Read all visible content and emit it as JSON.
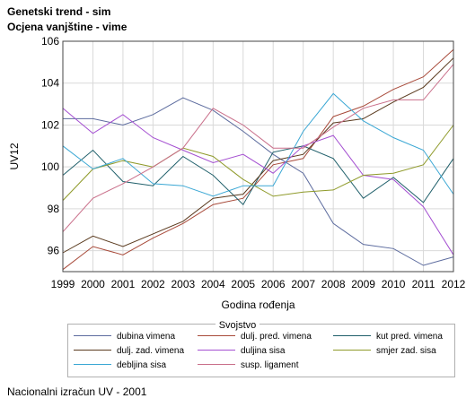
{
  "header": {
    "title": "Genetski trend - sim",
    "subtitle": "Ocjena vanjštine - vime"
  },
  "footer": {
    "text": "Nacionalni izračun UV - 2001"
  },
  "chart_data": {
    "type": "line",
    "xlabel": "Godina rođenja",
    "ylabel": "UV12",
    "x": [
      "1999",
      "2000",
      "2001",
      "2002",
      "2003",
      "2004",
      "2005",
      "2006",
      "2007",
      "2008",
      "2009",
      "2010",
      "2011",
      "2012"
    ],
    "ylim": [
      95,
      106
    ],
    "yticks": [
      "96",
      "98",
      "100",
      "102",
      "104",
      "106"
    ],
    "grid": true,
    "legend": {
      "title": "Svojstvo",
      "placement": "bottom"
    },
    "series": [
      {
        "name": "dubina vimena",
        "color": "#5c6b9e",
        "values": [
          102.3,
          102.3,
          102.0,
          102.5,
          103.3,
          102.7,
          101.7,
          100.6,
          99.7,
          97.3,
          96.3,
          96.1,
          95.3,
          95.7
        ]
      },
      {
        "name": "dulj. pred. vimena",
        "color": "#a84a3a",
        "values": [
          95.1,
          96.2,
          95.8,
          96.6,
          97.3,
          98.2,
          98.5,
          100.1,
          100.4,
          102.4,
          102.9,
          103.7,
          104.3,
          105.6
        ]
      },
      {
        "name": "kut pred. vimena",
        "color": "#1f5f6a",
        "values": [
          99.6,
          100.8,
          99.3,
          99.1,
          100.5,
          99.6,
          98.2,
          100.7,
          101.0,
          100.4,
          98.5,
          99.5,
          98.3,
          100.4
        ]
      },
      {
        "name": "dulj. zad. vimena",
        "color": "#5a3a1e",
        "values": [
          95.9,
          96.7,
          96.2,
          96.8,
          97.4,
          98.5,
          98.7,
          100.3,
          100.6,
          102.1,
          102.3,
          103.1,
          103.8,
          105.2
        ]
      },
      {
        "name": "duljina sisa",
        "color": "#a44fd1",
        "values": [
          102.8,
          101.6,
          102.5,
          101.4,
          100.8,
          100.2,
          100.6,
          99.7,
          101.0,
          101.5,
          99.6,
          99.4,
          98.1,
          95.8
        ]
      },
      {
        "name": "smjer zad. sisa",
        "color": "#8f9a2a",
        "values": [
          98.4,
          99.9,
          100.3,
          100.0,
          100.9,
          100.5,
          99.4,
          98.6,
          98.8,
          98.9,
          99.6,
          99.7,
          100.1,
          102.0
        ]
      },
      {
        "name": "debljina sisa",
        "color": "#3aa7d4",
        "values": [
          101.0,
          99.9,
          100.4,
          99.2,
          99.1,
          98.6,
          99.1,
          99.1,
          101.7,
          103.5,
          102.2,
          101.4,
          100.8,
          98.7
        ]
      },
      {
        "name": "susp. ligament",
        "color": "#c96f8a",
        "values": [
          96.9,
          98.5,
          99.2,
          100.0,
          100.9,
          102.8,
          102.0,
          100.9,
          100.9,
          101.9,
          102.8,
          103.2,
          103.2,
          104.9
        ]
      }
    ]
  }
}
